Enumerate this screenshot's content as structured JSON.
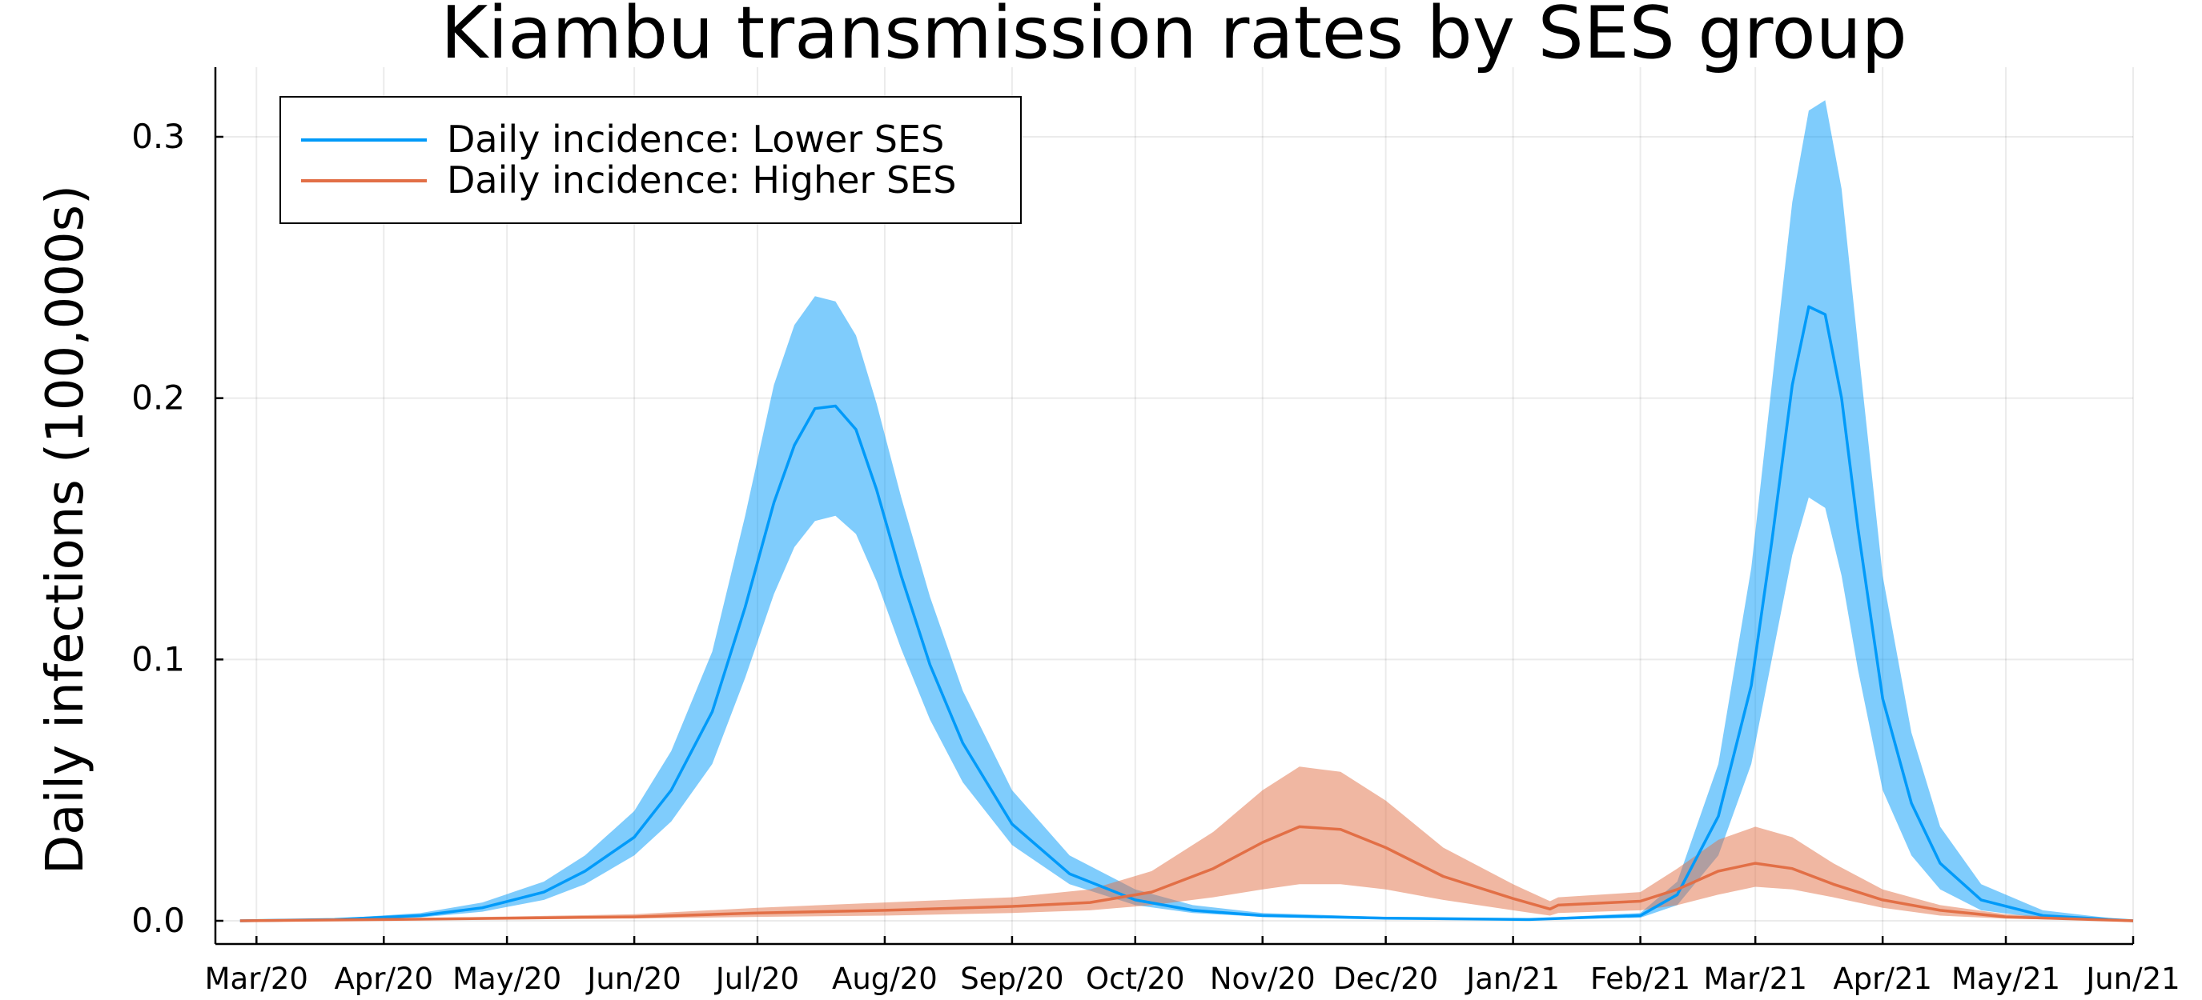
{
  "chart_data": {
    "type": "line",
    "title": "Kiambu transmission rates by SES group",
    "xlabel": "",
    "ylabel": "Daily infections (100,000s)",
    "x_ticks": [
      "Mar/20",
      "Apr/20",
      "May/20",
      "Jun/20",
      "Jul/20",
      "Aug/20",
      "Sep/20",
      "Oct/20",
      "Nov/20",
      "Dec/20",
      "Jan/21",
      "Feb/21",
      "Mar/21",
      "Apr/21",
      "May/21",
      "Jun/21"
    ],
    "x_tick_dates": [
      "2020-03-01",
      "2020-04-01",
      "2020-05-01",
      "2020-06-01",
      "2020-07-01",
      "2020-08-01",
      "2020-09-01",
      "2020-10-01",
      "2020-11-01",
      "2020-12-01",
      "2021-01-01",
      "2021-02-01",
      "2021-03-01",
      "2021-04-01",
      "2021-05-01",
      "2021-06-01"
    ],
    "y_ticks": [
      "0.0",
      "0.1",
      "0.2",
      "0.3"
    ],
    "y_tick_values": [
      0.0,
      0.1,
      0.2,
      0.3
    ],
    "xlim": [
      "2020-02-20",
      "2021-06-01"
    ],
    "ylim": [
      -0.008,
      0.3
    ],
    "grid": true,
    "legend_position": "top-left",
    "series": [
      {
        "name": "Daily incidence: Lower SES",
        "color": "#009af9",
        "band_color": "#009af9",
        "x": [
          "2020-02-26",
          "2020-03-20",
          "2020-04-10",
          "2020-04-25",
          "2020-05-10",
          "2020-05-20",
          "2020-06-01",
          "2020-06-10",
          "2020-06-20",
          "2020-06-28",
          "2020-07-05",
          "2020-07-10",
          "2020-07-15",
          "2020-07-20",
          "2020-07-25",
          "2020-07-30",
          "2020-08-05",
          "2020-08-12",
          "2020-08-20",
          "2020-09-01",
          "2020-09-15",
          "2020-10-01",
          "2020-10-15",
          "2020-11-01",
          "2020-12-01",
          "2021-01-05",
          "2021-02-01",
          "2021-02-10",
          "2021-02-20",
          "2021-02-28",
          "2021-03-05",
          "2021-03-10",
          "2021-03-14",
          "2021-03-18",
          "2021-03-22",
          "2021-03-26",
          "2021-04-01",
          "2021-04-08",
          "2021-04-15",
          "2021-04-25",
          "2021-05-10",
          "2021-06-01"
        ],
        "y": [
          0.0,
          0.0005,
          0.002,
          0.005,
          0.011,
          0.019,
          0.032,
          0.05,
          0.08,
          0.12,
          0.16,
          0.182,
          0.196,
          0.197,
          0.188,
          0.165,
          0.132,
          0.098,
          0.068,
          0.037,
          0.018,
          0.008,
          0.004,
          0.002,
          0.001,
          0.0005,
          0.002,
          0.01,
          0.04,
          0.09,
          0.145,
          0.205,
          0.235,
          0.232,
          0.2,
          0.15,
          0.085,
          0.045,
          0.022,
          0.008,
          0.002,
          0.0
        ],
        "lower": [
          0.0,
          0.0003,
          0.0013,
          0.0035,
          0.008,
          0.014,
          0.025,
          0.038,
          0.06,
          0.093,
          0.125,
          0.143,
          0.153,
          0.155,
          0.148,
          0.13,
          0.104,
          0.077,
          0.053,
          0.029,
          0.014,
          0.006,
          0.003,
          0.0015,
          0.0008,
          0.0003,
          0.0012,
          0.006,
          0.025,
          0.06,
          0.1,
          0.14,
          0.162,
          0.158,
          0.132,
          0.096,
          0.05,
          0.025,
          0.012,
          0.004,
          0.001,
          0.0
        ],
        "upper": [
          0.0,
          0.0008,
          0.003,
          0.007,
          0.015,
          0.025,
          0.042,
          0.065,
          0.103,
          0.155,
          0.205,
          0.228,
          0.239,
          0.237,
          0.224,
          0.198,
          0.162,
          0.124,
          0.088,
          0.05,
          0.025,
          0.012,
          0.006,
          0.003,
          0.0015,
          0.0008,
          0.003,
          0.015,
          0.06,
          0.135,
          0.205,
          0.275,
          0.31,
          0.314,
          0.28,
          0.22,
          0.132,
          0.072,
          0.036,
          0.014,
          0.004,
          0.0
        ]
      },
      {
        "name": "Daily incidence: Higher SES",
        "color": "#e26f46",
        "band_color": "#e26f46",
        "x": [
          "2020-02-26",
          "2020-04-01",
          "2020-06-01",
          "2020-07-01",
          "2020-08-01",
          "2020-09-01",
          "2020-09-20",
          "2020-10-05",
          "2020-10-20",
          "2020-11-01",
          "2020-11-10",
          "2020-11-20",
          "2020-12-01",
          "2020-12-15",
          "2021-01-01",
          "2021-01-10",
          "2021-01-12",
          "2021-02-01",
          "2021-02-10",
          "2021-02-20",
          "2021-03-01",
          "2021-03-10",
          "2021-03-20",
          "2021-04-01",
          "2021-04-15",
          "2021-05-01",
          "2021-06-01"
        ],
        "y": [
          0.0,
          0.0005,
          0.0015,
          0.003,
          0.004,
          0.0055,
          0.007,
          0.011,
          0.02,
          0.03,
          0.036,
          0.035,
          0.028,
          0.017,
          0.0085,
          0.0045,
          0.006,
          0.0075,
          0.012,
          0.019,
          0.022,
          0.02,
          0.014,
          0.008,
          0.004,
          0.0015,
          0.0
        ],
        "lower": [
          0.0,
          0.0003,
          0.0009,
          0.0015,
          0.002,
          0.003,
          0.004,
          0.006,
          0.009,
          0.012,
          0.014,
          0.014,
          0.012,
          0.008,
          0.004,
          0.002,
          0.003,
          0.004,
          0.006,
          0.01,
          0.013,
          0.012,
          0.009,
          0.005,
          0.002,
          0.0008,
          0.0
        ],
        "upper": [
          0.0,
          0.0008,
          0.0025,
          0.005,
          0.007,
          0.009,
          0.012,
          0.019,
          0.034,
          0.05,
          0.059,
          0.057,
          0.046,
          0.028,
          0.014,
          0.0075,
          0.009,
          0.011,
          0.02,
          0.031,
          0.036,
          0.032,
          0.022,
          0.012,
          0.006,
          0.0025,
          0.0
        ]
      }
    ]
  }
}
